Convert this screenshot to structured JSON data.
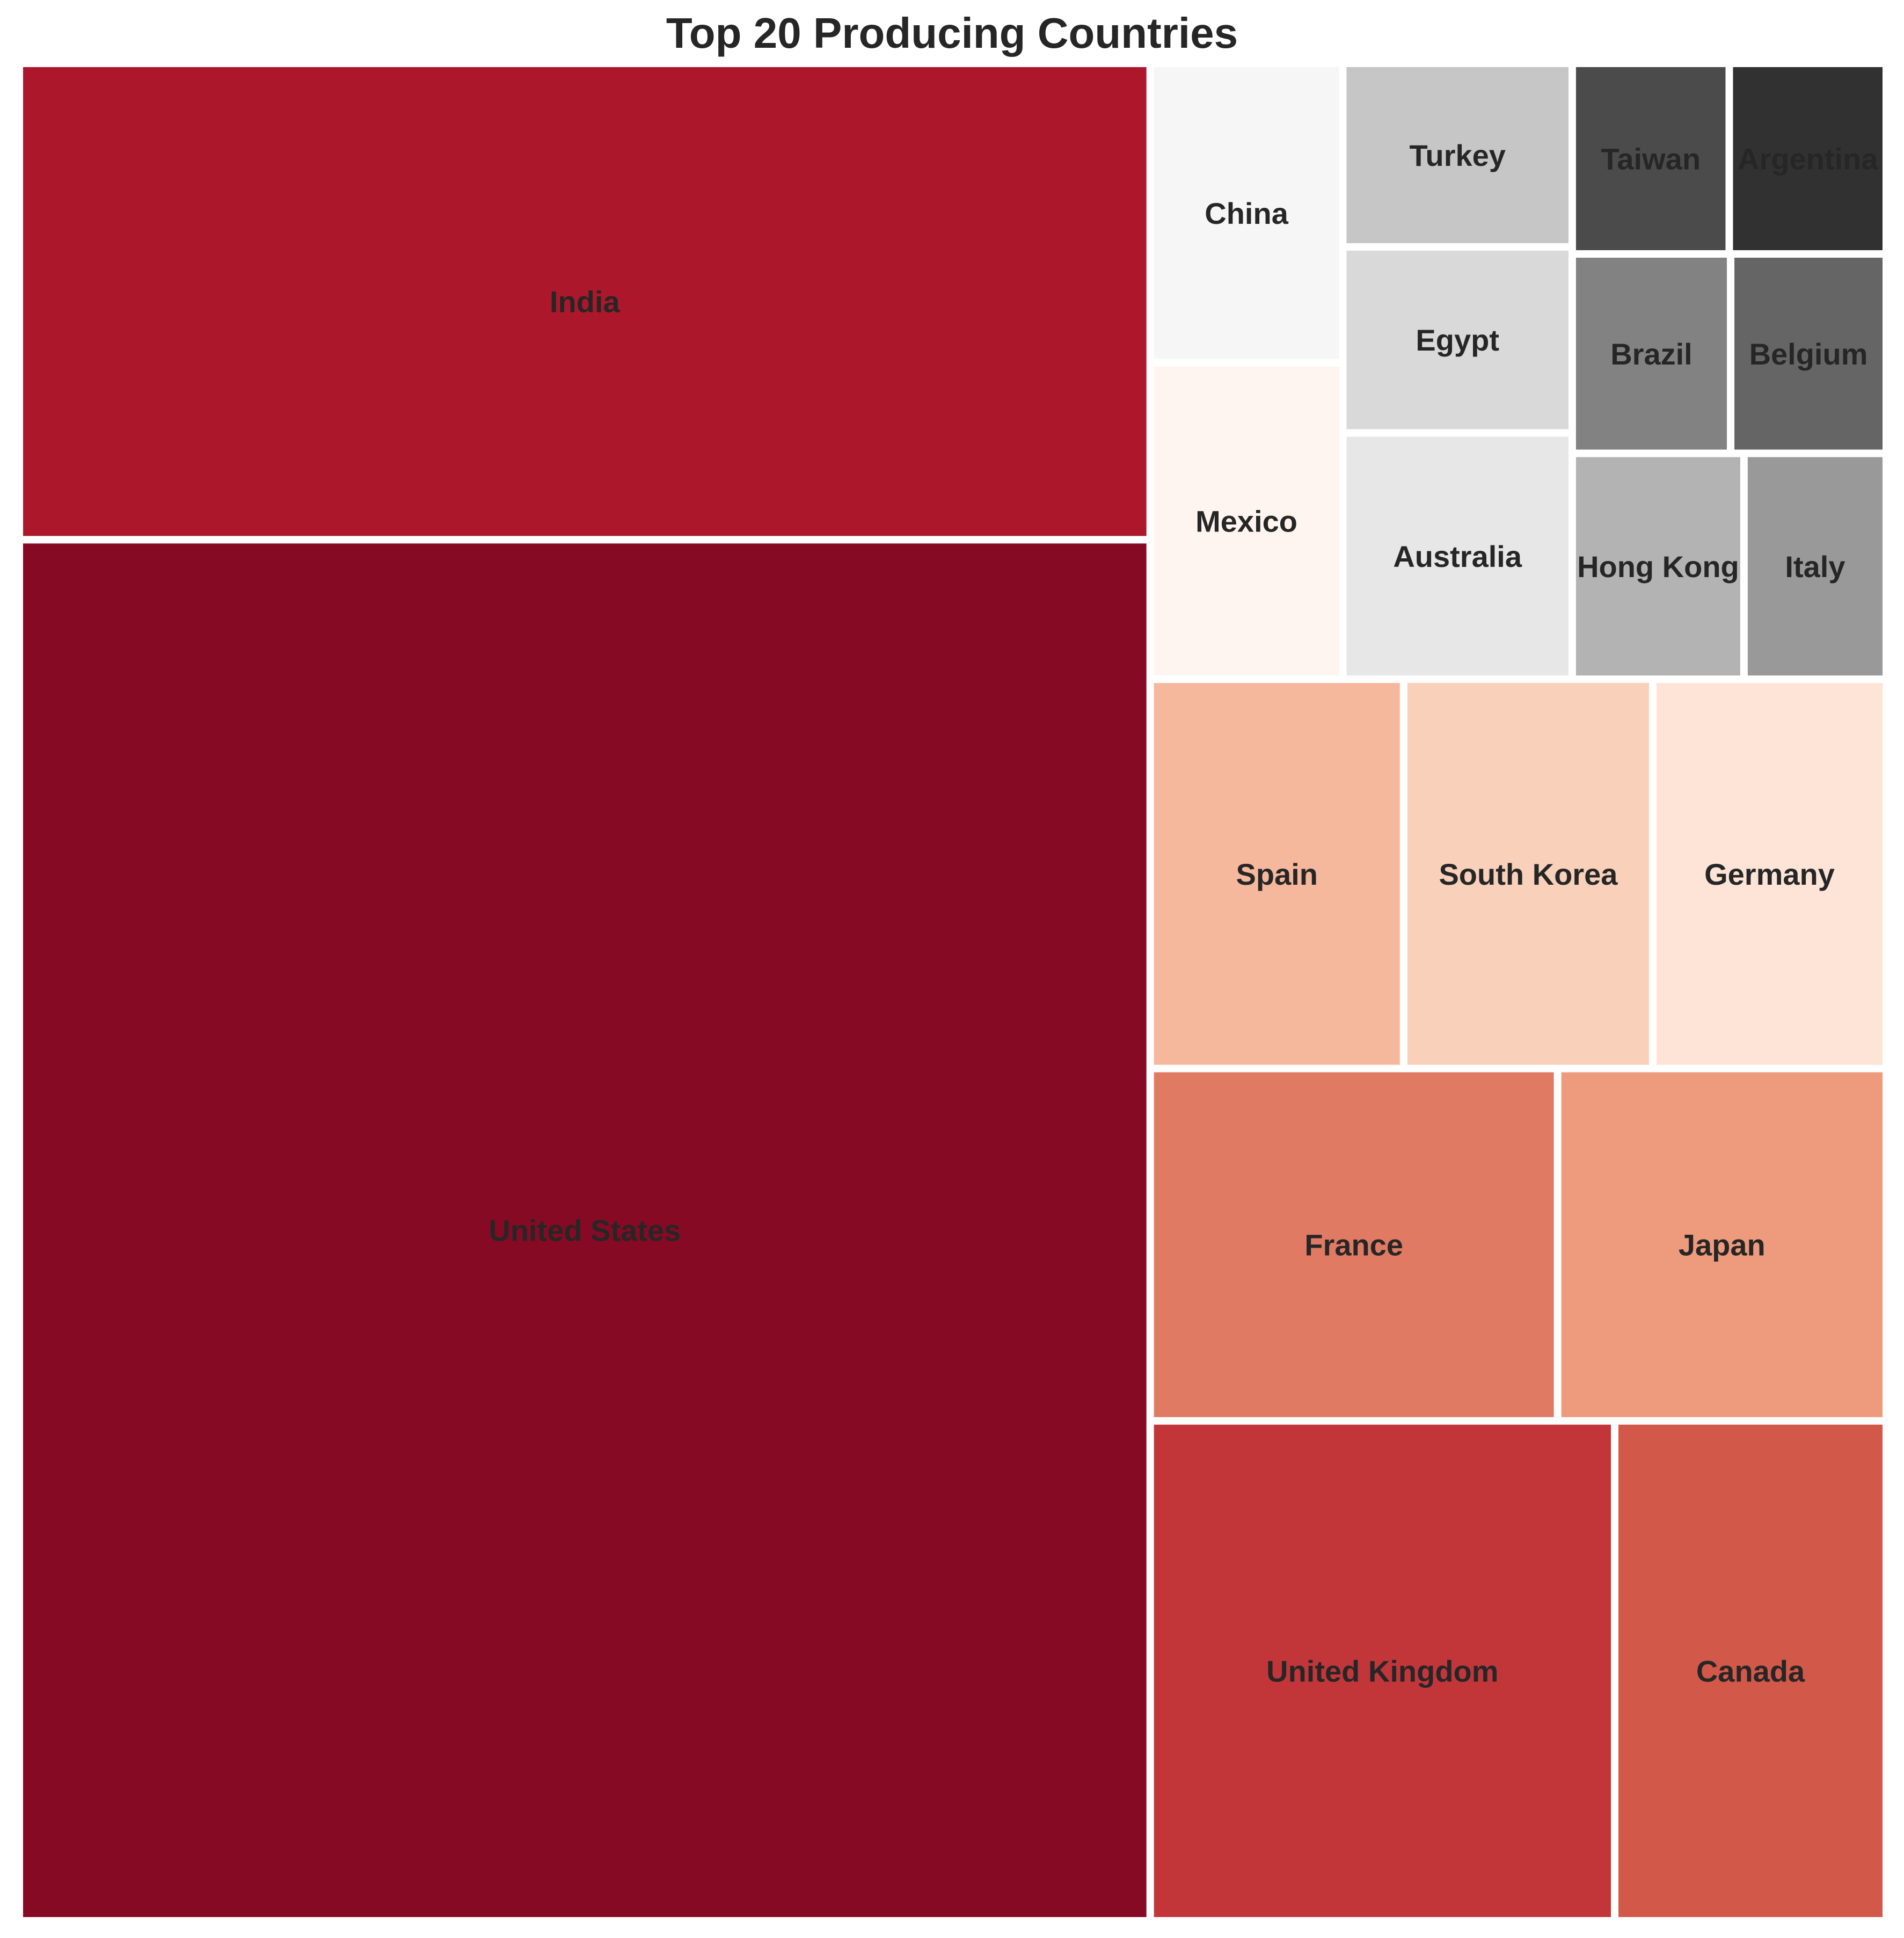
{
  "chart_data": {
    "type": "treemap",
    "title": "Top 20 Producing Countries",
    "items": [
      {
        "label": "United States",
        "value": 2818,
        "color": "#870a24"
      },
      {
        "label": "India",
        "value": 972,
        "color": "#ad172b"
      },
      {
        "label": "United Kingdom",
        "value": 419,
        "color": "#c2363a"
      },
      {
        "label": "Canada",
        "value": 245,
        "color": "#d25849"
      },
      {
        "label": "France",
        "value": 259,
        "color": "#e17a63"
      },
      {
        "label": "Japan",
        "value": 209,
        "color": "#ee9a7c"
      },
      {
        "label": "Spain",
        "value": 178,
        "color": "#f5b89c"
      },
      {
        "label": "South Korea",
        "value": 175,
        "color": "#f9d0b9"
      },
      {
        "label": "Germany",
        "value": 164,
        "color": "#fde4d6"
      },
      {
        "label": "Mexico",
        "value": 110,
        "color": "#fff5f0"
      },
      {
        "label": "China",
        "value": 104,
        "color": "#f6f6f6"
      },
      {
        "label": "Australia",
        "value": 102,
        "color": "#e7e7e7"
      },
      {
        "label": "Egypt",
        "value": 77,
        "color": "#d9d9d9"
      },
      {
        "label": "Turkey",
        "value": 76,
        "color": "#c6c6c6"
      },
      {
        "label": "Hong Kong",
        "value": 70,
        "color": "#b3b3b3"
      },
      {
        "label": "Italy",
        "value": 58,
        "color": "#999999"
      },
      {
        "label": "Brazil",
        "value": 57,
        "color": "#828282"
      },
      {
        "label": "Belgium",
        "value": 56,
        "color": "#656565"
      },
      {
        "label": "Taiwan",
        "value": 54,
        "color": "#4b4b4b"
      },
      {
        "label": "Argentina",
        "value": 54,
        "color": "#313131"
      }
    ]
  }
}
